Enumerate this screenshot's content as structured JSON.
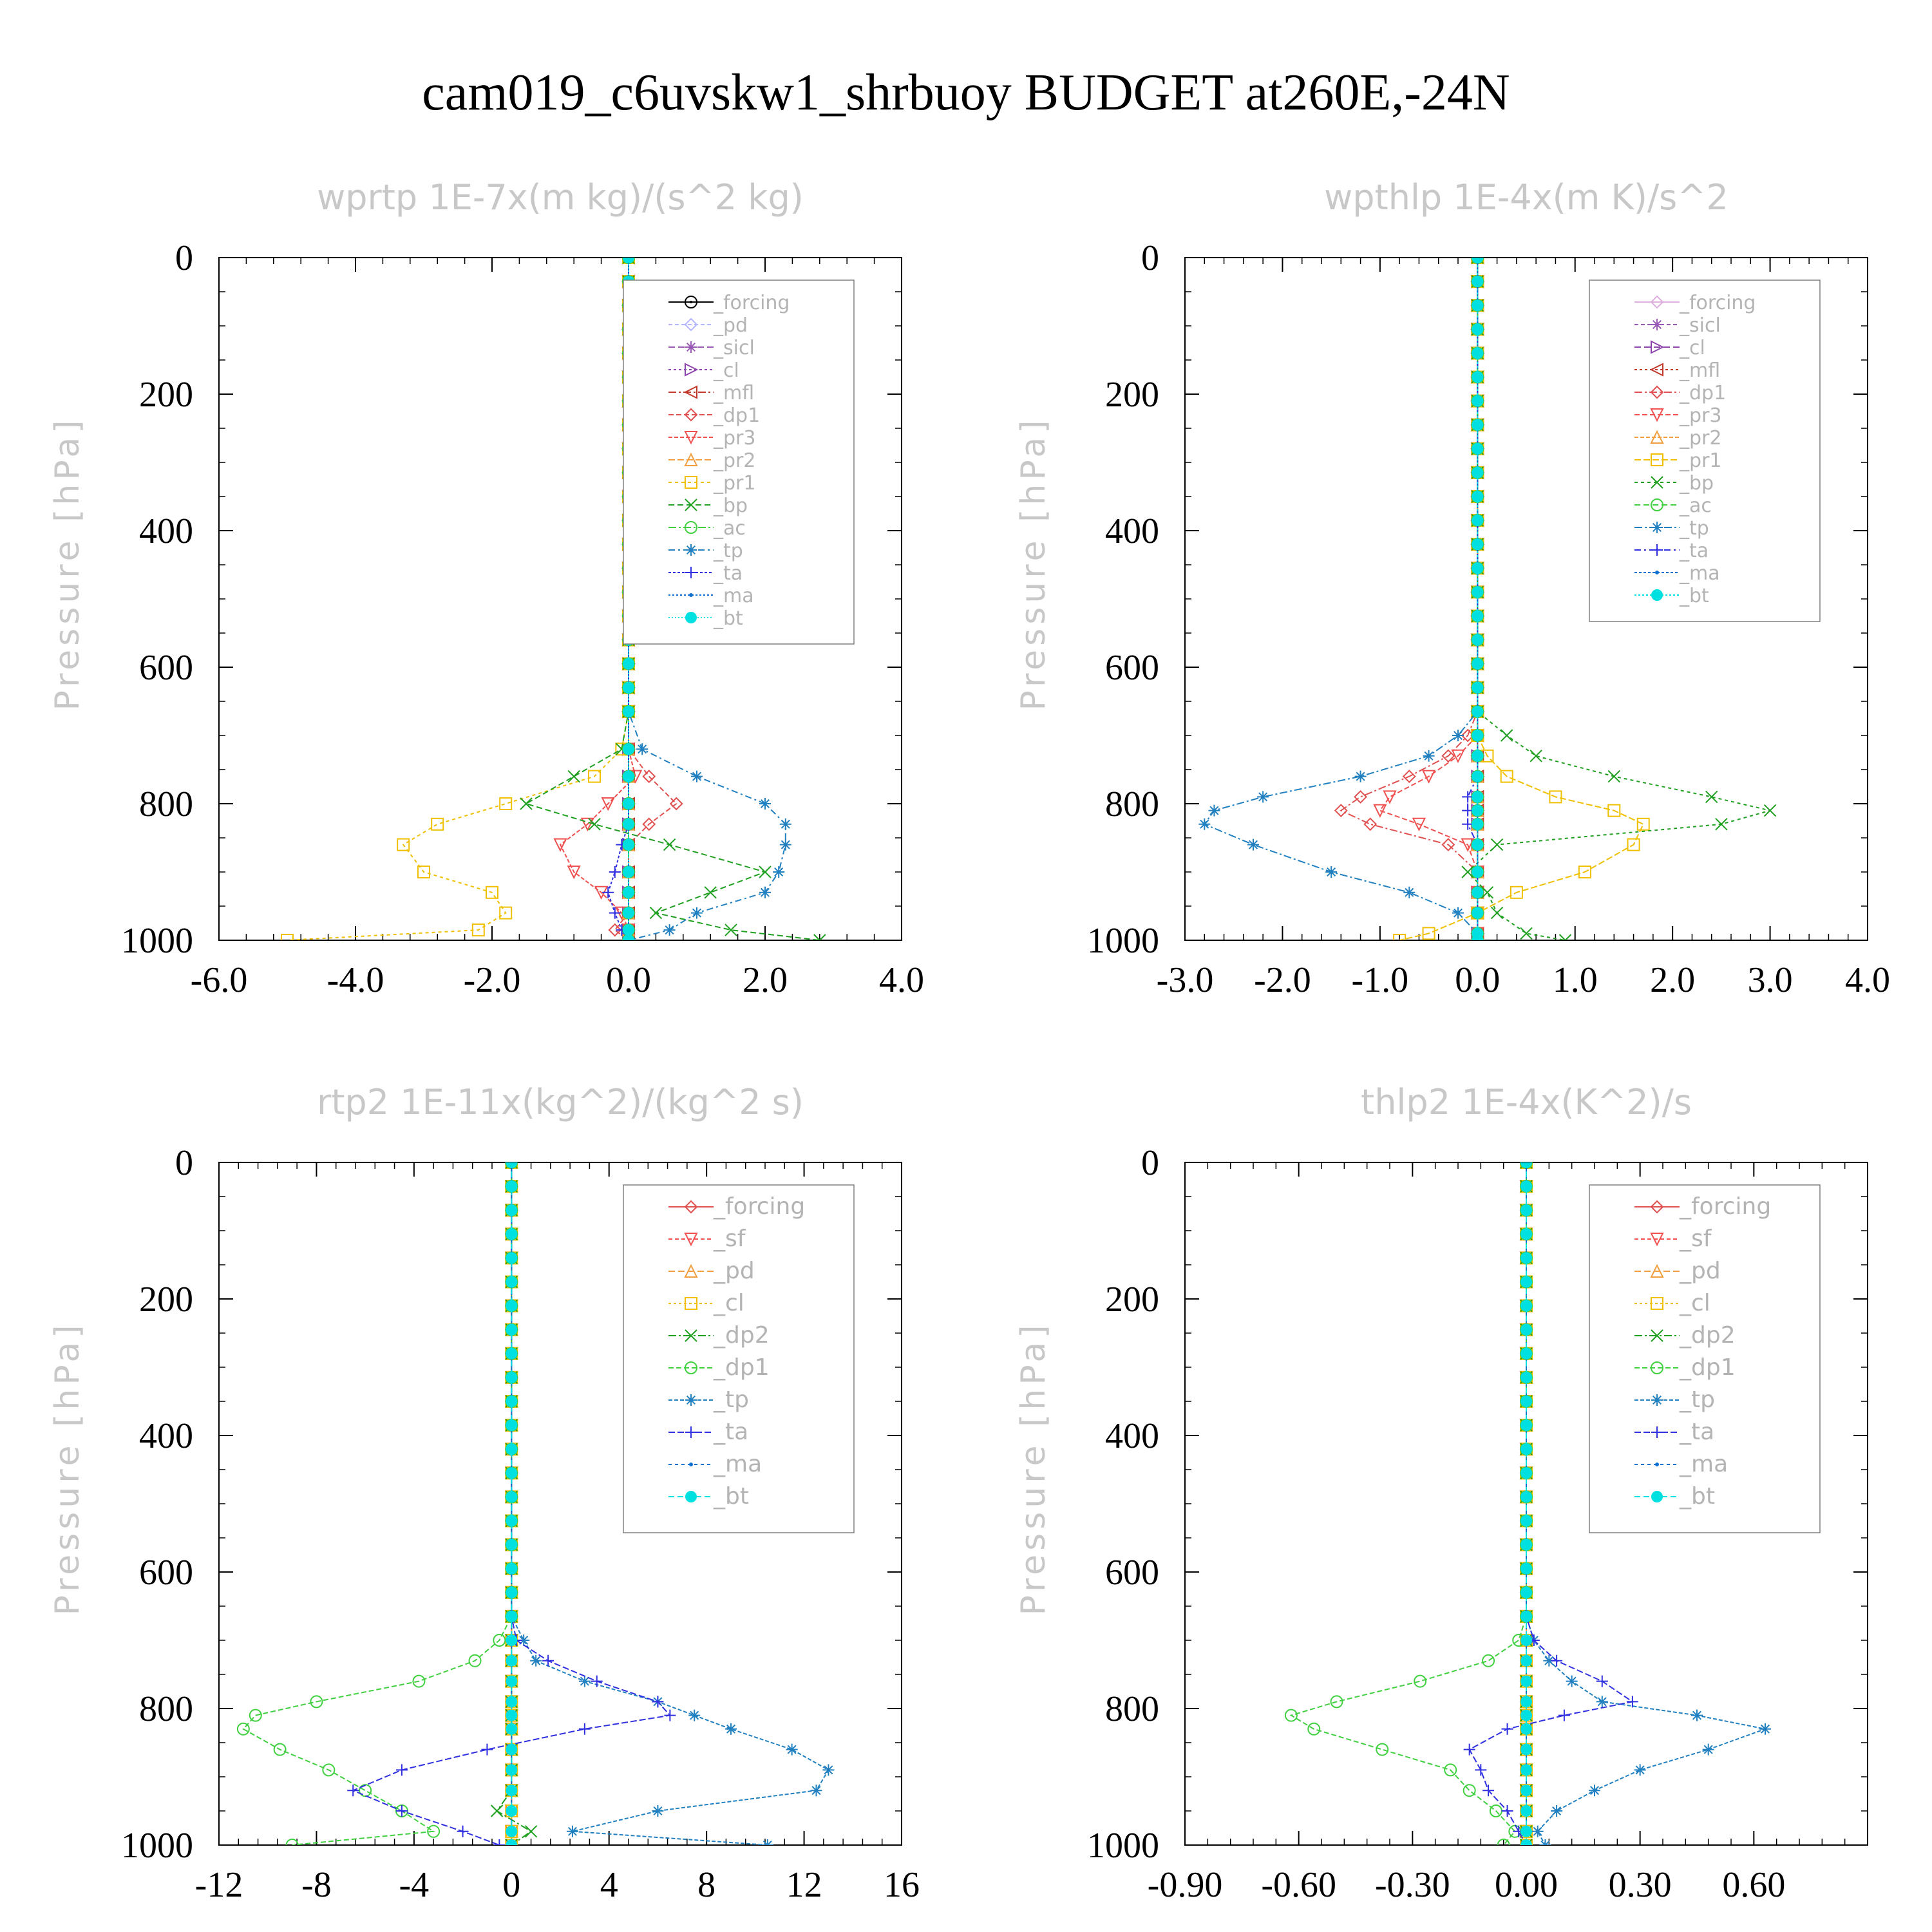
{
  "figure_title": "cam019_c6uvskw1_shrbuoy  BUDGET at260E,-24N",
  "chart_data": [
    {
      "type": "line",
      "title": "wprtp  1E-7x(m kg)/(s^2 kg)",
      "ylabel": "Pressure [hPa]",
      "xlim": [
        -6,
        4
      ],
      "ylim": [
        1000,
        0
      ],
      "xticks": [
        "-6.0",
        "-4.0",
        "-2.0",
        "0.0",
        "2.0",
        "4.0"
      ],
      "xtick_values": [
        -6,
        -4,
        -2,
        0,
        2,
        4
      ],
      "yticks": [
        "0",
        "200",
        "400",
        "600",
        "800",
        "1000"
      ],
      "ytick_values": [
        0,
        200,
        400,
        600,
        800,
        1000
      ],
      "grid": false,
      "legend": "top-right",
      "pressure": [
        720,
        760,
        800,
        830,
        860,
        900,
        930,
        960,
        985,
        1000
      ],
      "series": [
        {
          "name": "_forcing",
          "color": "#000000",
          "marker": "circle-dot",
          "values": [
            0,
            0,
            0,
            0,
            0,
            0,
            0,
            0,
            0,
            0
          ]
        },
        {
          "name": "_pd",
          "color": "#b4b4ff",
          "marker": "diamond",
          "values": [
            0,
            0,
            0,
            0,
            0,
            0,
            0,
            0,
            0,
            0
          ]
        },
        {
          "name": "_sicl",
          "color": "#9b59b6",
          "marker": "star",
          "values": [
            0,
            0,
            0,
            0,
            0,
            0,
            0,
            0,
            0,
            0
          ]
        },
        {
          "name": "_cl",
          "color": "#8e44ad",
          "marker": "tri-right",
          "values": [
            0,
            0,
            0,
            0,
            0,
            0,
            0,
            0,
            0,
            0
          ]
        },
        {
          "name": "_mfl",
          "color": "#c0392b",
          "marker": "tri-left",
          "values": [
            0,
            0,
            0,
            0,
            0,
            0,
            0,
            0,
            0,
            0
          ]
        },
        {
          "name": "_dp1",
          "color": "#e05050",
          "marker": "diamond",
          "values": [
            0,
            0.3,
            0.7,
            0.3,
            0,
            0,
            0,
            0,
            -0.2,
            0
          ]
        },
        {
          "name": "_pr3",
          "color": "#f05050",
          "marker": "tri-down",
          "values": [
            0,
            0.1,
            -0.3,
            -0.6,
            -1.0,
            -0.8,
            -0.4,
            -0.1,
            0,
            0
          ]
        },
        {
          "name": "_pr2",
          "color": "#f0a040",
          "marker": "triangle",
          "values": [
            0,
            0,
            0,
            0,
            0,
            0,
            0,
            0,
            0,
            0
          ]
        },
        {
          "name": "_pr1",
          "color": "#f0c000",
          "marker": "square",
          "values": [
            -0.1,
            -0.5,
            -1.8,
            -2.8,
            -3.3,
            -3.0,
            -2.0,
            -1.8,
            -2.2,
            -5.0
          ]
        },
        {
          "name": "_bp",
          "color": "#20a020",
          "marker": "x",
          "values": [
            -0.1,
            -0.8,
            -1.5,
            -0.5,
            0.6,
            2.0,
            1.2,
            0.4,
            1.5,
            2.8
          ]
        },
        {
          "name": "_ac",
          "color": "#40d040",
          "marker": "circle",
          "values": [
            0,
            0,
            0,
            0,
            0,
            0,
            0,
            0,
            0,
            0
          ]
        },
        {
          "name": "_tp",
          "color": "#2080c0",
          "marker": "asterisk",
          "values": [
            0.2,
            1.0,
            2.0,
            2.3,
            2.3,
            2.2,
            2.0,
            1.0,
            0.6,
            0
          ]
        },
        {
          "name": "_ta",
          "color": "#3030e0",
          "marker": "plus",
          "values": [
            0,
            0,
            0,
            0,
            -0.1,
            -0.2,
            -0.3,
            -0.2,
            -0.1,
            0
          ]
        },
        {
          "name": "_ma",
          "color": "#1070d0",
          "marker": "dot",
          "values": [
            0,
            0,
            0,
            0,
            0,
            0,
            0,
            0,
            0,
            0
          ]
        },
        {
          "name": "_bt",
          "color": "#00e0e0",
          "marker": "filled-circle",
          "values": [
            0,
            0,
            0,
            0,
            0,
            0,
            0,
            0,
            0,
            0
          ]
        }
      ]
    },
    {
      "type": "line",
      "title": "wpthlp  1E-4x(m K)/s^2",
      "ylabel": "Pressure [hPa]",
      "xlim": [
        -3,
        4
      ],
      "ylim": [
        1000,
        0
      ],
      "xticks": [
        "-3.0",
        "-2.0",
        "-1.0",
        "0.0",
        "1.0",
        "2.0",
        "3.0",
        "4.0"
      ],
      "xtick_values": [
        -3,
        -2,
        -1,
        0,
        1,
        2,
        3,
        4
      ],
      "yticks": [
        "0",
        "200",
        "400",
        "600",
        "800",
        "1000"
      ],
      "ytick_values": [
        0,
        200,
        400,
        600,
        800,
        1000
      ],
      "grid": false,
      "legend": "top-right",
      "pressure": [
        700,
        730,
        760,
        790,
        810,
        830,
        860,
        900,
        930,
        960,
        990,
        1000
      ],
      "series": [
        {
          "name": "_forcing",
          "color": "#e0b0e0",
          "marker": "diamond",
          "values": [
            0,
            0,
            0,
            0,
            0,
            0,
            0,
            0,
            0,
            0,
            0,
            0
          ]
        },
        {
          "name": "_sicl",
          "color": "#9b59b6",
          "marker": "star",
          "values": [
            0,
            0,
            0,
            0,
            0,
            0,
            0,
            0,
            0,
            0,
            0,
            0
          ]
        },
        {
          "name": "_cl",
          "color": "#8e44ad",
          "marker": "tri-right",
          "values": [
            0,
            0,
            0,
            0,
            0,
            0,
            0,
            0,
            0,
            0,
            0,
            0
          ]
        },
        {
          "name": "_mfl",
          "color": "#c0392b",
          "marker": "tri-left",
          "values": [
            0,
            0,
            0,
            0,
            0,
            0,
            0,
            0,
            0,
            0,
            0,
            0
          ]
        },
        {
          "name": "_dp1",
          "color": "#e05050",
          "marker": "diamond",
          "values": [
            -0.1,
            -0.3,
            -0.7,
            -1.2,
            -1.4,
            -1.1,
            -0.3,
            0,
            0,
            0,
            0,
            0
          ]
        },
        {
          "name": "_pr3",
          "color": "#f05050",
          "marker": "tri-down",
          "values": [
            0,
            -0.2,
            -0.5,
            -0.9,
            -1.0,
            -0.6,
            -0.1,
            0,
            0,
            0,
            0,
            0
          ]
        },
        {
          "name": "_pr2",
          "color": "#f0a040",
          "marker": "triangle",
          "values": [
            0,
            0,
            0,
            0,
            0,
            0,
            0,
            0,
            0,
            0,
            0,
            0
          ]
        },
        {
          "name": "_pr1",
          "color": "#f0c000",
          "marker": "square",
          "values": [
            0,
            0.1,
            0.3,
            0.8,
            1.4,
            1.7,
            1.6,
            1.1,
            0.4,
            0,
            -0.5,
            -0.8
          ]
        },
        {
          "name": "_bp",
          "color": "#20a020",
          "marker": "x",
          "values": [
            0.3,
            0.6,
            1.4,
            2.4,
            3.0,
            2.5,
            0.2,
            -0.1,
            0.1,
            0.2,
            0.5,
            0.9
          ]
        },
        {
          "name": "_ac",
          "color": "#40d040",
          "marker": "circle",
          "values": [
            0,
            0,
            0,
            0,
            0,
            0,
            0,
            0,
            0,
            0,
            0,
            0
          ]
        },
        {
          "name": "_tp",
          "color": "#2080c0",
          "marker": "asterisk",
          "values": [
            -0.2,
            -0.5,
            -1.2,
            -2.2,
            -2.7,
            -2.8,
            -2.3,
            -1.5,
            -0.7,
            -0.2,
            0,
            0
          ]
        },
        {
          "name": "_ta",
          "color": "#3030e0",
          "marker": "plus",
          "values": [
            0,
            0,
            0,
            -0.1,
            -0.1,
            -0.1,
            0,
            0,
            0,
            0,
            0,
            0
          ]
        },
        {
          "name": "_ma",
          "color": "#1070d0",
          "marker": "dot",
          "values": [
            0,
            0,
            0,
            0,
            0,
            0,
            0,
            0,
            0,
            0,
            0,
            0
          ]
        },
        {
          "name": "_bt",
          "color": "#00e0e0",
          "marker": "filled-circle",
          "values": [
            0,
            0,
            0,
            0,
            0,
            0,
            0,
            0,
            0,
            0,
            0,
            0
          ]
        }
      ]
    },
    {
      "type": "line",
      "title": "rtp2  1E-11x(kg^2)/(kg^2 s)",
      "ylabel": "Pressure [hPa]",
      "xlim": [
        -12,
        16
      ],
      "ylim": [
        1000,
        0
      ],
      "xticks": [
        "-12",
        "-8",
        "-4",
        "0",
        "4",
        "8",
        "12",
        "16"
      ],
      "xtick_values": [
        -12,
        -8,
        -4,
        0,
        4,
        8,
        12,
        16
      ],
      "yticks": [
        "0",
        "200",
        "400",
        "600",
        "800",
        "1000"
      ],
      "ytick_values": [
        0,
        200,
        400,
        600,
        800,
        1000
      ],
      "grid": false,
      "legend": "top-right",
      "pressure": [
        700,
        730,
        760,
        790,
        810,
        830,
        860,
        890,
        920,
        950,
        980,
        1000
      ],
      "series": [
        {
          "name": "_forcing",
          "color": "#e05050",
          "marker": "diamond",
          "values": [
            0,
            0,
            0,
            0,
            0,
            0,
            0,
            0,
            0,
            0,
            0,
            0
          ]
        },
        {
          "name": "_sf",
          "color": "#f05050",
          "marker": "tri-down",
          "values": [
            0,
            0,
            0,
            0,
            0,
            0,
            0,
            0,
            0,
            0,
            0,
            0
          ]
        },
        {
          "name": "_pd",
          "color": "#f0a040",
          "marker": "triangle",
          "values": [
            0,
            0,
            0,
            0,
            0,
            0,
            0,
            0,
            0,
            0,
            0,
            0
          ]
        },
        {
          "name": "_cl",
          "color": "#f0c000",
          "marker": "square",
          "values": [
            0,
            0,
            0,
            0,
            0,
            0,
            0,
            0,
            0,
            0,
            0,
            0
          ]
        },
        {
          "name": "_dp2",
          "color": "#20a020",
          "marker": "x",
          "values": [
            0,
            0,
            0,
            0,
            0,
            0,
            0,
            0,
            0,
            -0.6,
            0.8,
            0
          ]
        },
        {
          "name": "_dp1",
          "color": "#40d040",
          "marker": "circle",
          "values": [
            -0.5,
            -1.5,
            -3.8,
            -8.0,
            -10.5,
            -11.0,
            -9.5,
            -7.5,
            -6.0,
            -4.5,
            -3.2,
            -9.0
          ]
        },
        {
          "name": "_tp",
          "color": "#2080c0",
          "marker": "asterisk",
          "values": [
            0.5,
            1.0,
            3.0,
            6.0,
            7.5,
            9.0,
            11.5,
            13.0,
            12.5,
            6.0,
            2.5,
            10.5
          ]
        },
        {
          "name": "_ta",
          "color": "#3030e0",
          "marker": "plus",
          "values": [
            0.2,
            1.5,
            3.5,
            6.0,
            6.5,
            3.0,
            -1.0,
            -4.5,
            -6.5,
            -4.5,
            -2.0,
            -0.5
          ]
        },
        {
          "name": "_ma",
          "color": "#1070d0",
          "marker": "dot",
          "values": [
            0,
            0,
            0,
            0,
            0,
            0,
            0,
            0,
            0,
            0,
            0,
            0
          ]
        },
        {
          "name": "_bt",
          "color": "#00e0e0",
          "marker": "filled-circle",
          "values": [
            0,
            0,
            0,
            0,
            0,
            0,
            0,
            0,
            0,
            0,
            0,
            0
          ]
        }
      ]
    },
    {
      "type": "line",
      "title": "thlp2  1E-4x(K^2)/s",
      "ylabel": "Pressure [hPa]",
      "xlim": [
        -0.9,
        0.9
      ],
      "ylim": [
        1000,
        0
      ],
      "xticks": [
        "-0.90",
        "-0.60",
        "-0.30",
        "0.00",
        "0.30",
        "0.60"
      ],
      "xtick_values": [
        -0.9,
        -0.6,
        -0.3,
        0,
        0.3,
        0.6
      ],
      "yticks": [
        "0",
        "200",
        "400",
        "600",
        "800",
        "1000"
      ],
      "ytick_values": [
        0,
        200,
        400,
        600,
        800,
        1000
      ],
      "grid": false,
      "legend": "top-right",
      "pressure": [
        700,
        730,
        760,
        790,
        810,
        830,
        860,
        890,
        920,
        950,
        980,
        1000
      ],
      "series": [
        {
          "name": "_forcing",
          "color": "#e05050",
          "marker": "diamond",
          "values": [
            0,
            0,
            0,
            0,
            0,
            0,
            0,
            0,
            0,
            0,
            0,
            0
          ]
        },
        {
          "name": "_sf",
          "color": "#f05050",
          "marker": "tri-down",
          "values": [
            0,
            0,
            0,
            0,
            0,
            0,
            0,
            0,
            0,
            0,
            0,
            0
          ]
        },
        {
          "name": "_pd",
          "color": "#f0a040",
          "marker": "triangle",
          "values": [
            0,
            0,
            0,
            0,
            0,
            0,
            0,
            0,
            0,
            0,
            0,
            0
          ]
        },
        {
          "name": "_cl",
          "color": "#f0c000",
          "marker": "square",
          "values": [
            0,
            0,
            0,
            0,
            0,
            0,
            0,
            0,
            0,
            0,
            0,
            0
          ]
        },
        {
          "name": "_dp2",
          "color": "#20a020",
          "marker": "x",
          "values": [
            0,
            0,
            0,
            0,
            0,
            0,
            0,
            0,
            0,
            0,
            0,
            0
          ]
        },
        {
          "name": "_dp1",
          "color": "#40d040",
          "marker": "circle",
          "values": [
            -0.02,
            -0.1,
            -0.28,
            -0.5,
            -0.62,
            -0.56,
            -0.38,
            -0.2,
            -0.15,
            -0.08,
            -0.03,
            -0.06
          ]
        },
        {
          "name": "_tp",
          "color": "#2080c0",
          "marker": "asterisk",
          "values": [
            0.02,
            0.06,
            0.12,
            0.2,
            0.45,
            0.63,
            0.48,
            0.3,
            0.18,
            0.08,
            0.03,
            0.05
          ]
        },
        {
          "name": "_ta",
          "color": "#3030e0",
          "marker": "plus",
          "values": [
            0.02,
            0.08,
            0.2,
            0.28,
            0.1,
            -0.05,
            -0.15,
            -0.12,
            -0.1,
            -0.05,
            -0.02,
            0
          ]
        },
        {
          "name": "_ma",
          "color": "#1070d0",
          "marker": "dot",
          "values": [
            0,
            0,
            0,
            0,
            0,
            0,
            0,
            0,
            0,
            0,
            0,
            0
          ]
        },
        {
          "name": "_bt",
          "color": "#00e0e0",
          "marker": "filled-circle",
          "values": [
            0,
            0,
            0,
            0,
            0,
            0,
            0,
            0,
            0,
            0,
            0,
            0
          ]
        }
      ]
    }
  ]
}
